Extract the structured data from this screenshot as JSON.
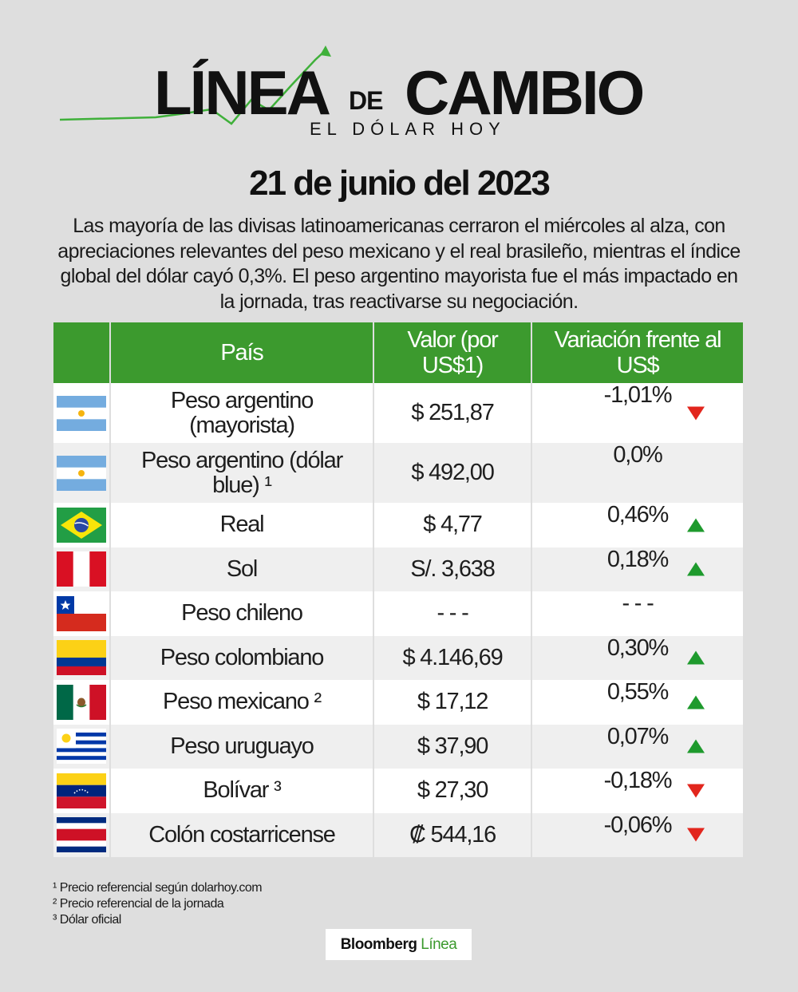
{
  "header": {
    "logo_word1": "LÍNEA",
    "logo_word2": "DE",
    "logo_word3": "CAMBIO",
    "logo_subtitle": "EL DÓLAR HOY",
    "date": "21 de junio del 2023",
    "intro": "Las mayoría de las divisas latinoamericanas cerraron el miércoles al alza, con apreciaciones relevantes del peso mexicano y el real brasileño, mientras el índice global del dólar cayó 0,3%. El peso argentino mayorista fue el más impactado en la jornada, tras reactivarse su negociación."
  },
  "table": {
    "headers": {
      "country": "País",
      "value": "Valor (por US$1)",
      "variation": "Variación frente al US$"
    },
    "rows": [
      {
        "flag": "argentina-flag-icon",
        "country": "Peso argentino (mayorista)",
        "value": "$ 251,87",
        "variation": "-1,01%",
        "trend": "down"
      },
      {
        "flag": "argentina-flag-icon",
        "country": "Peso argentino (dólar blue) ¹",
        "value": "$ 492,00",
        "variation": "0,0%",
        "trend": "none"
      },
      {
        "flag": "brazil-flag-icon",
        "country": "Real",
        "value": "$ 4,77",
        "variation": "0,46%",
        "trend": "up"
      },
      {
        "flag": "peru-flag-icon",
        "country": "Sol",
        "value": "S/. 3,638",
        "variation": "0,18%",
        "trend": "up"
      },
      {
        "flag": "chile-flag-icon",
        "country": "Peso chileno",
        "value": "- - -",
        "variation": "- - -",
        "trend": "none"
      },
      {
        "flag": "colombia-flag-icon",
        "country": "Peso colombiano",
        "value": "$ 4.146,69",
        "variation": "0,30%",
        "trend": "up"
      },
      {
        "flag": "mexico-flag-icon",
        "country": "Peso mexicano ²",
        "value": "$ 17,12",
        "variation": "0,55%",
        "trend": "up"
      },
      {
        "flag": "uruguay-flag-icon",
        "country": "Peso uruguayo",
        "value": "$ 37,90",
        "variation": "0,07%",
        "trend": "up"
      },
      {
        "flag": "venezuela-flag-icon",
        "country": "Bolívar ³",
        "value": "$ 27,30",
        "variation": "-0,18%",
        "trend": "down"
      },
      {
        "flag": "costa-rica-flag-icon",
        "country": "Colón costarricense",
        "value": "₡ 544,16",
        "variation": "-0,06%",
        "trend": "down"
      }
    ]
  },
  "footnotes": [
    "¹ Precio referencial según dolarhoy.com",
    "² Precio referencial de la jornada",
    "³ Dólar oficial"
  ],
  "brand": {
    "name": "Bloomberg",
    "accent": "Línea"
  },
  "colors": {
    "header_green": "#3c9a2e",
    "up_arrow": "#1e9a2d",
    "down_arrow": "#e2261d",
    "background": "#dedede"
  }
}
